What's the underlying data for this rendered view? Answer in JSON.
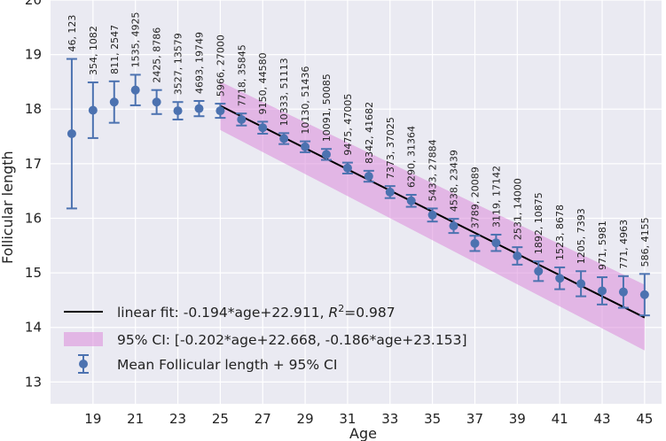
{
  "chart_data": {
    "type": "scatter",
    "xlabel": "Age",
    "ylabel": "Follicular length",
    "xlim": [
      17,
      45.8
    ],
    "ylim": [
      12.6,
      20.0
    ],
    "x_ticks": [
      19,
      21,
      23,
      25,
      27,
      29,
      31,
      33,
      35,
      37,
      39,
      41,
      43,
      45
    ],
    "y_ticks": [
      13,
      14,
      15,
      16,
      17,
      18,
      19,
      20
    ],
    "grid": true,
    "legend_position": "bottom-left",
    "colors": {
      "background": "#eaeaf2",
      "grid": "#ffffff",
      "points": "#4c72b0",
      "fit_line": "#000000",
      "ci_band": "#da8bda"
    },
    "series": [
      {
        "name": "Mean Follicular length + 95% CI",
        "kind": "errorbar",
        "points": [
          {
            "x": 18,
            "y": 17.55,
            "lo": 16.18,
            "hi": 18.92,
            "label": "46, 123"
          },
          {
            "x": 19,
            "y": 17.98,
            "lo": 17.47,
            "hi": 18.49,
            "label": "354, 1082"
          },
          {
            "x": 20,
            "y": 18.13,
            "lo": 17.75,
            "hi": 18.51,
            "label": "811, 2547"
          },
          {
            "x": 21,
            "y": 18.35,
            "lo": 18.07,
            "hi": 18.63,
            "label": "1535, 4925"
          },
          {
            "x": 22,
            "y": 18.13,
            "lo": 17.91,
            "hi": 18.35,
            "label": "2425, 8786"
          },
          {
            "x": 23,
            "y": 17.97,
            "lo": 17.81,
            "hi": 18.13,
            "label": "3527, 13579"
          },
          {
            "x": 24,
            "y": 18.01,
            "lo": 17.87,
            "hi": 18.15,
            "label": "4693, 19749"
          },
          {
            "x": 25,
            "y": 17.97,
            "lo": 17.84,
            "hi": 18.1,
            "label": "5966, 27000"
          },
          {
            "x": 26,
            "y": 17.81,
            "lo": 17.7,
            "hi": 17.92,
            "label": "7718, 35845"
          },
          {
            "x": 27,
            "y": 17.66,
            "lo": 17.55,
            "hi": 17.77,
            "label": "9150, 44580"
          },
          {
            "x": 28,
            "y": 17.46,
            "lo": 17.36,
            "hi": 17.56,
            "label": "10333, 51113"
          },
          {
            "x": 29,
            "y": 17.31,
            "lo": 17.21,
            "hi": 17.41,
            "label": "10130, 51436"
          },
          {
            "x": 30,
            "y": 17.17,
            "lo": 17.07,
            "hi": 17.27,
            "label": "10091, 50085"
          },
          {
            "x": 31,
            "y": 16.92,
            "lo": 16.82,
            "hi": 17.02,
            "label": "9475, 47005"
          },
          {
            "x": 32,
            "y": 16.77,
            "lo": 16.67,
            "hi": 16.87,
            "label": "8342, 41682"
          },
          {
            "x": 33,
            "y": 16.48,
            "lo": 16.37,
            "hi": 16.59,
            "label": "7373, 37025"
          },
          {
            "x": 34,
            "y": 16.32,
            "lo": 16.21,
            "hi": 16.43,
            "label": "6290, 31364"
          },
          {
            "x": 35,
            "y": 16.06,
            "lo": 15.94,
            "hi": 16.18,
            "label": "5433, 27884"
          },
          {
            "x": 36,
            "y": 15.86,
            "lo": 15.73,
            "hi": 15.99,
            "label": "4538, 23439"
          },
          {
            "x": 37,
            "y": 15.54,
            "lo": 15.4,
            "hi": 15.68,
            "label": "3789, 20089"
          },
          {
            "x": 38,
            "y": 15.55,
            "lo": 15.4,
            "hi": 15.7,
            "label": "3119, 17142"
          },
          {
            "x": 39,
            "y": 15.31,
            "lo": 15.15,
            "hi": 15.47,
            "label": "2531, 14000"
          },
          {
            "x": 40,
            "y": 15.03,
            "lo": 14.85,
            "hi": 15.21,
            "label": "1892, 10875"
          },
          {
            "x": 41,
            "y": 14.9,
            "lo": 14.7,
            "hi": 15.1,
            "label": "1523, 8678"
          },
          {
            "x": 42,
            "y": 14.8,
            "lo": 14.57,
            "hi": 15.03,
            "label": "1205, 7393"
          },
          {
            "x": 43,
            "y": 14.67,
            "lo": 14.42,
            "hi": 14.92,
            "label": "971, 5981"
          },
          {
            "x": 44,
            "y": 14.65,
            "lo": 14.36,
            "hi": 14.94,
            "label": "771, 4963"
          },
          {
            "x": 45,
            "y": 14.6,
            "lo": 14.22,
            "hi": 14.98,
            "label": "586, 4155"
          }
        ]
      },
      {
        "name": "linear fit",
        "kind": "line",
        "slope": -0.194,
        "intercept": 22.911,
        "x_range": [
          25,
          45
        ]
      },
      {
        "name": "95% CI",
        "kind": "band",
        "lower": {
          "slope": -0.202,
          "intercept": 22.668
        },
        "upper": {
          "slope": -0.186,
          "intercept": 23.153
        },
        "x_range": [
          25,
          45
        ]
      }
    ],
    "legend": [
      {
        "kind": "line",
        "pre": "linear fit: -0.194*age+22.911, ",
        "r2_base": "R",
        "r2_sup": "2",
        "post": "=0.987"
      },
      {
        "kind": "band",
        "text": "95% CI: [-0.202*age+22.668, -0.186*age+23.153]"
      },
      {
        "kind": "errorbar",
        "text": "Mean Follicular length + 95% CI"
      }
    ]
  }
}
